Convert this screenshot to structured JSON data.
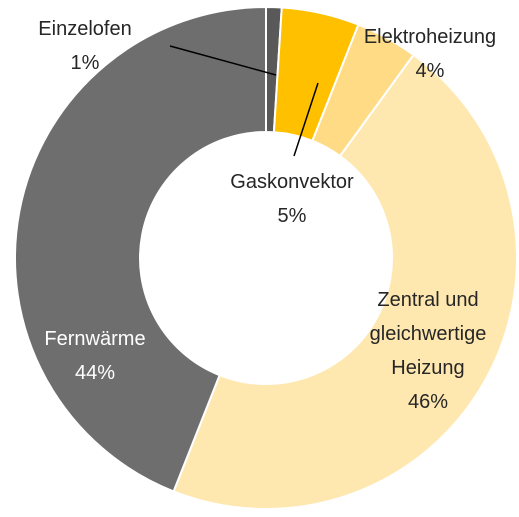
{
  "chart_data": {
    "type": "donut",
    "categories": [
      "Einzelofen",
      "Gaskonvektor",
      "Elektroheizung",
      "Zentral und gleichwertige Heizung",
      "Fernwärme"
    ],
    "values": [
      1,
      5,
      4,
      46,
      44
    ],
    "value_labels": [
      "1%",
      "5%",
      "4%",
      "46%",
      "44%"
    ],
    "colors": [
      "#595959",
      "#ffc000",
      "#ffdb85",
      "#ffe8b0",
      "#6e6e6e"
    ]
  }
}
